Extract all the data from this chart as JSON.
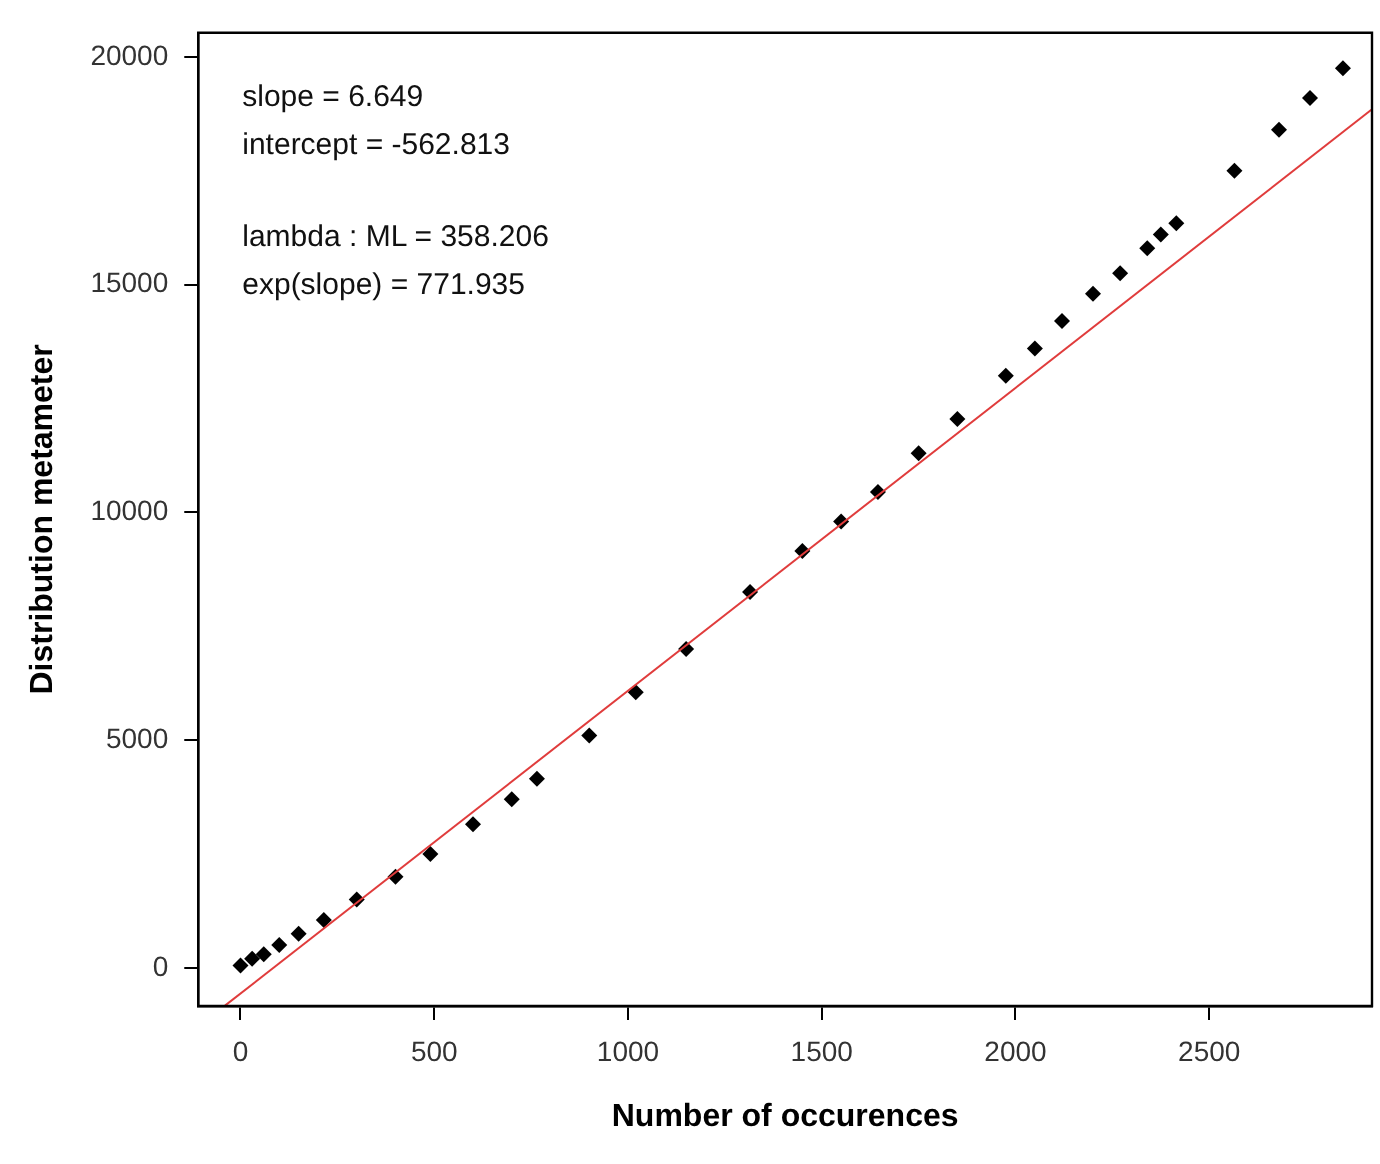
{
  "chart_data": {
    "type": "scatter",
    "xlabel": "Number of occurences",
    "ylabel": "Distribution metameter",
    "annotations": [
      "slope = 6.649",
      "intercept = -562.813",
      "lambda : ML = 358.206",
      "exp(slope) = 771.935"
    ],
    "xlim": [
      -109,
      2920
    ],
    "ylim": [
      -838,
      20530
    ],
    "xticks": [
      0,
      500,
      1000,
      1500,
      2000,
      2500
    ],
    "yticks": [
      0,
      5000,
      10000,
      15000,
      20000
    ],
    "grid": false,
    "legend": false,
    "marker": "diamond",
    "series": [
      {
        "color": "#000000",
        "x": [
          0,
          30,
          60,
          100,
          150,
          215,
          300,
          400,
          490,
          600,
          700,
          765,
          900,
          1020,
          1150,
          1315,
          1450,
          1550,
          1645,
          1750,
          1850,
          1975,
          2050,
          2120,
          2200,
          2270,
          2340,
          2375,
          2415,
          2565,
          2680,
          2760,
          2845
        ],
        "values": [
          50,
          200,
          300,
          500,
          750,
          1050,
          1500,
          2000,
          2500,
          3150,
          3700,
          4150,
          5100,
          6050,
          7000,
          8250,
          9150,
          9800,
          10450,
          11300,
          12050,
          13000,
          13600,
          14200,
          14800,
          15250,
          15800,
          16100,
          16350,
          17500,
          18400,
          19100,
          19750
        ]
      },
      {
        "type": "line",
        "color": "#e03c3c",
        "marker": "none",
        "line_style": "solid",
        "x": [
          -40,
          2920
        ],
        "values": [
          -830,
          18850
        ]
      }
    ]
  }
}
